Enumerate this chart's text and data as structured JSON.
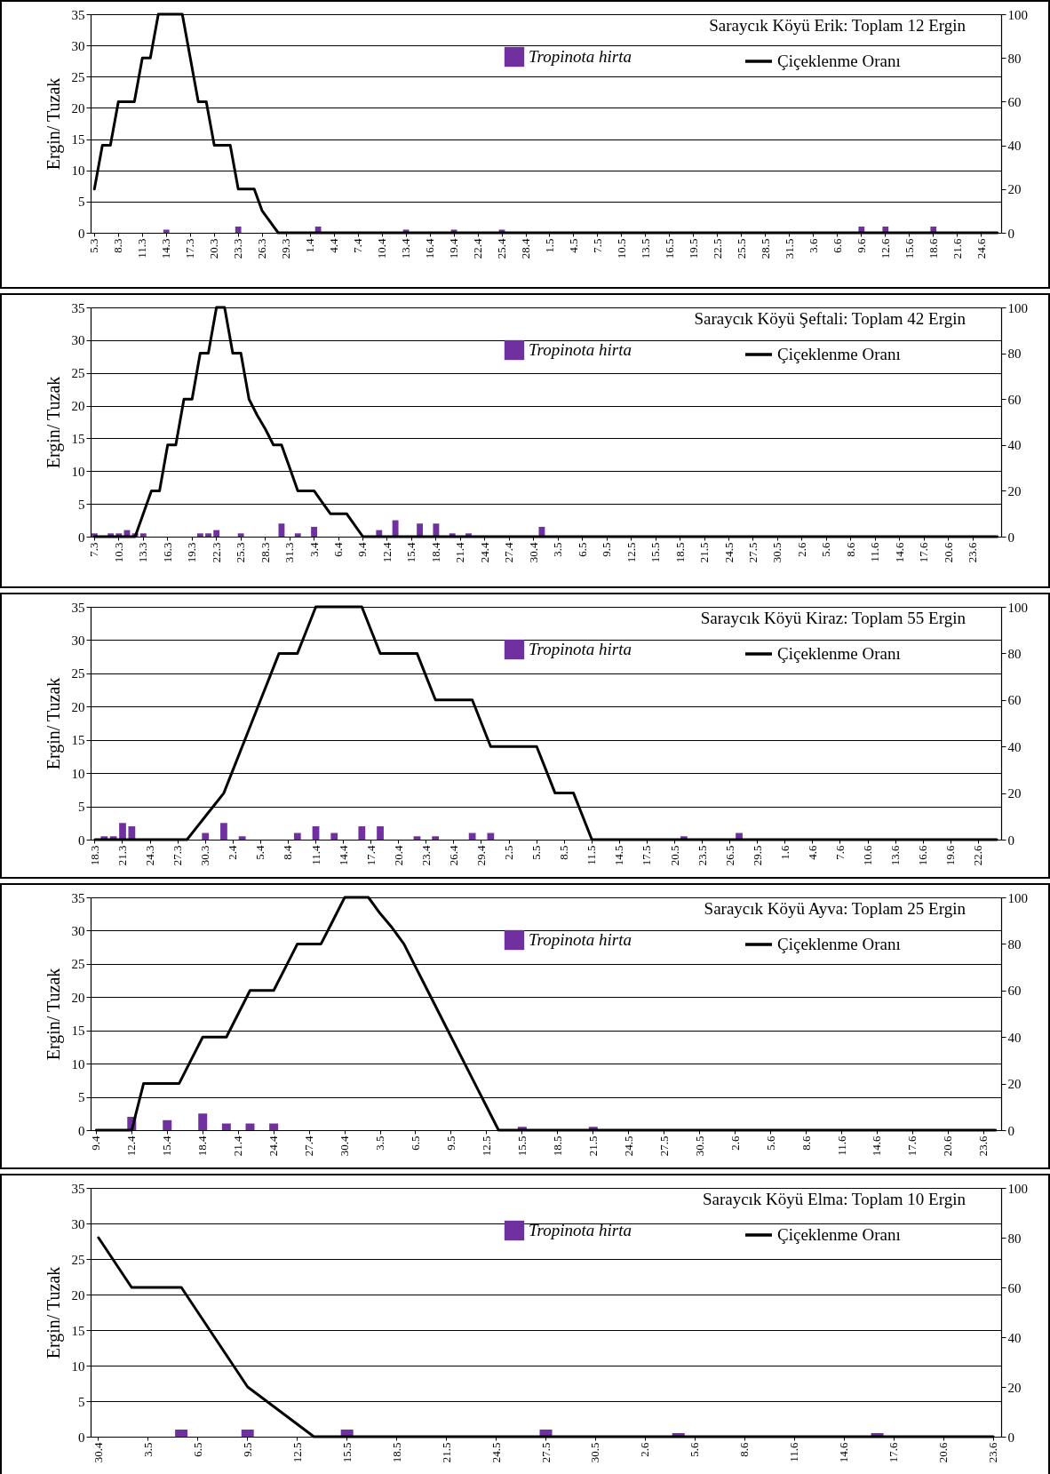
{
  "chart_data": [
    {
      "type": "bar",
      "title": "Saraycık Köyü Erik: Toplam 12 Ergin",
      "ylabel": "Ergin/ Tuzak",
      "grid": "y",
      "legend": "top right",
      "ylim": [
        0,
        35
      ],
      "yticks": [
        0,
        5,
        10,
        15,
        20,
        25,
        30,
        35
      ],
      "y2lim": [
        0,
        100
      ],
      "y2ticks": [
        0,
        20,
        40,
        60,
        80,
        100
      ],
      "categories": [
        "5.3",
        null,
        null,
        "8.3",
        null,
        null,
        "11.3",
        null,
        null,
        "14.3",
        null,
        null,
        "17.3",
        null,
        null,
        "20.3",
        null,
        null,
        "23.3",
        null,
        null,
        "26.3",
        null,
        null,
        "29.3",
        null,
        null,
        "1.4",
        null,
        null,
        "4.4",
        null,
        null,
        "7.4",
        null,
        null,
        "10.4",
        null,
        null,
        "13.4",
        null,
        null,
        "16.4",
        null,
        null,
        "19.4",
        null,
        null,
        "22.4",
        null,
        null,
        "25.4",
        null,
        null,
        "28.4",
        null,
        null,
        "1.5",
        null,
        null,
        "4.5",
        null,
        null,
        "7.5",
        null,
        null,
        "10.5",
        null,
        null,
        "13.5",
        null,
        null,
        "16.5",
        null,
        null,
        "19.5",
        null,
        null,
        "22.5",
        null,
        null,
        "25.5",
        null,
        null,
        "28.5",
        null,
        null,
        "31.5",
        null,
        null,
        "3.6",
        null,
        null,
        "6.6",
        null,
        null,
        "9.6",
        null,
        null,
        "12.6",
        null,
        null,
        "15.6",
        null,
        null,
        "18.6",
        null,
        null,
        "21.6",
        null,
        null,
        "24.6",
        null,
        null
      ],
      "series": [
        {
          "name": "Tropinota hirta",
          "type": "bar",
          "color": "#7030a0",
          "values": [
            0,
            0,
            0,
            0,
            0,
            0,
            0,
            0,
            0,
            0.5,
            0,
            0,
            0,
            0,
            0,
            0,
            0,
            0,
            1,
            0,
            0,
            0,
            0,
            0,
            0,
            0,
            0,
            0,
            1,
            0,
            0,
            0,
            0,
            0,
            0,
            0,
            0,
            0,
            0,
            0.5,
            0,
            0,
            0,
            0,
            0,
            0.5,
            0,
            0,
            0,
            0,
            0,
            0.5,
            0,
            0,
            0,
            0,
            0,
            0,
            0,
            0,
            0,
            0,
            0,
            0,
            0,
            0,
            0,
            0,
            0,
            0,
            0,
            0,
            0,
            0,
            0,
            0,
            0,
            0,
            0,
            0,
            0,
            0,
            0,
            0,
            0,
            0,
            0,
            0,
            0,
            0,
            0,
            0,
            0,
            0,
            0,
            0,
            1,
            0,
            0,
            1,
            0,
            0,
            0,
            0,
            0,
            1,
            0,
            0,
            0,
            0,
            0,
            0,
            0,
            0
          ]
        },
        {
          "name": "Çiçeklenme Oranı",
          "type": "line",
          "axis": "y2",
          "color": "#000000",
          "values": [
            20,
            40,
            40,
            60,
            60,
            60,
            80,
            80,
            100,
            100,
            100,
            100,
            80,
            60,
            60,
            40,
            40,
            40,
            20,
            20,
            20,
            10,
            5,
            0,
            0,
            0,
            0,
            0,
            0,
            0,
            0,
            0,
            0,
            0,
            0,
            0,
            0,
            0,
            0,
            0,
            0,
            0,
            0,
            0,
            0,
            0,
            0,
            0,
            0,
            0,
            0,
            0,
            0,
            0,
            0,
            0,
            0,
            0,
            0,
            0,
            0,
            0,
            0,
            0,
            0,
            0,
            0,
            0,
            0,
            0,
            0,
            0,
            0,
            0,
            0,
            0,
            0,
            0,
            0,
            0,
            0,
            0,
            0,
            0,
            0,
            0,
            0,
            0,
            0,
            0,
            0,
            0,
            0,
            0,
            0,
            0,
            0,
            0,
            0,
            0,
            0,
            0,
            0,
            0,
            0,
            0,
            0,
            0,
            0,
            0,
            0,
            0,
            0,
            0
          ]
        }
      ]
    },
    {
      "type": "bar",
      "title": "Saraycık Köyü Şeftali: Toplam 42 Ergin",
      "ylabel": "Ergin/ Tuzak",
      "grid": "y",
      "legend": "top right",
      "ylim": [
        0,
        35
      ],
      "yticks": [
        0,
        5,
        10,
        15,
        20,
        25,
        30,
        35
      ],
      "y2lim": [
        0,
        100
      ],
      "y2ticks": [
        0,
        20,
        40,
        60,
        80,
        100
      ],
      "categories": [
        "7.3",
        null,
        null,
        "10.3",
        null,
        null,
        "13.3",
        null,
        null,
        "16.3",
        null,
        null,
        "19.3",
        null,
        null,
        "22.3",
        null,
        null,
        "25.3",
        null,
        null,
        "28.3",
        null,
        null,
        "31.3",
        null,
        null,
        "3.4",
        null,
        null,
        "6.4",
        null,
        null,
        "9.4",
        null,
        null,
        "12.4",
        null,
        null,
        "15.4",
        null,
        null,
        "18.4",
        null,
        null,
        "21.4",
        null,
        null,
        "24.4",
        null,
        null,
        "27.4",
        null,
        null,
        "30.4",
        null,
        null,
        "3.5",
        null,
        null,
        "6.5",
        null,
        null,
        "9.5",
        null,
        null,
        "12.5",
        null,
        null,
        "15.5",
        null,
        null,
        "18.5",
        null,
        null,
        "21.5",
        null,
        null,
        "24.5",
        null,
        null,
        "27.5",
        null,
        null,
        "30.5",
        null,
        null,
        "2.6",
        null,
        null,
        "5.6",
        null,
        null,
        "8.6",
        null,
        null,
        "11.6",
        null,
        null,
        "14.6",
        null,
        null,
        "17.6",
        null,
        null,
        "20.6",
        null,
        null,
        "23.6",
        null,
        null,
        null
      ],
      "series": [
        {
          "name": "Tropinota hirta",
          "type": "bar",
          "color": "#7030a0",
          "values": [
            0.5,
            0,
            0.5,
            0.5,
            1,
            0.5,
            0.5,
            0,
            0,
            0,
            0,
            0,
            0,
            0.5,
            0.5,
            1,
            0,
            0,
            0.5,
            0,
            0,
            0,
            0,
            2,
            0,
            0.5,
            0,
            1.5,
            0,
            0,
            0,
            0,
            0,
            0,
            0,
            1,
            0,
            2.5,
            0,
            0,
            2,
            0,
            2,
            0,
            0.5,
            0,
            0.5,
            0,
            0,
            0,
            0,
            0,
            0,
            0,
            0,
            1.5,
            0,
            0,
            0,
            0,
            0,
            0,
            0,
            0,
            0,
            0,
            0,
            0,
            0,
            0,
            0,
            0,
            0,
            0,
            0,
            0,
            0,
            0,
            0,
            0,
            0,
            0,
            0,
            0,
            0,
            0,
            0,
            0,
            0,
            0,
            0,
            0,
            0,
            0,
            0,
            0,
            0,
            0,
            0,
            0,
            0,
            0,
            0,
            0,
            0,
            0,
            0,
            0,
            0,
            0,
            0,
            0
          ]
        },
        {
          "name": "Çiçeklenme Oranı",
          "type": "line",
          "axis": "y2",
          "color": "#000000",
          "values": [
            0,
            0,
            0,
            0,
            0,
            0,
            10,
            20,
            20,
            40,
            40,
            60,
            60,
            80,
            80,
            100,
            100,
            80,
            80,
            60,
            53,
            47,
            40,
            40,
            30,
            20,
            20,
            20,
            15,
            10,
            10,
            10,
            5,
            0,
            0,
            0,
            0,
            0,
            0,
            0,
            0,
            0,
            0,
            0,
            0,
            0,
            0,
            0,
            0,
            0,
            0,
            0,
            0,
            0,
            0,
            0,
            0,
            0,
            0,
            0,
            0,
            0,
            0,
            0,
            0,
            0,
            0,
            0,
            0,
            0,
            0,
            0,
            0,
            0,
            0,
            0,
            0,
            0,
            0,
            0,
            0,
            0,
            0,
            0,
            0,
            0,
            0,
            0,
            0,
            0,
            0,
            0,
            0,
            0,
            0,
            0,
            0,
            0,
            0,
            0,
            0,
            0,
            0,
            0,
            0,
            0,
            0,
            0,
            0,
            0,
            0,
            0
          ]
        }
      ]
    },
    {
      "type": "bar",
      "title": "Saraycık Köyü Kiraz: Toplam 55 Ergin",
      "ylabel": "Ergin/ Tuzak",
      "grid": "y",
      "legend": "top right",
      "ylim": [
        0,
        35
      ],
      "yticks": [
        0,
        5,
        10,
        15,
        20,
        25,
        30,
        35
      ],
      "y2lim": [
        0,
        100
      ],
      "y2ticks": [
        0,
        20,
        40,
        60,
        80,
        100
      ],
      "categories": [
        "18.3",
        null,
        null,
        "21.3",
        null,
        null,
        "24.3",
        null,
        null,
        "27.3",
        null,
        null,
        "30.3",
        null,
        null,
        "2.4",
        null,
        null,
        "5.4",
        null,
        null,
        "8.4",
        null,
        null,
        "11.4",
        null,
        null,
        "14.4",
        null,
        null,
        "17.4",
        null,
        null,
        "20.4",
        null,
        null,
        "23.4",
        null,
        null,
        "26.4",
        null,
        null,
        "29.4",
        null,
        null,
        "2.5",
        null,
        null,
        "5.5",
        null,
        null,
        "8.5",
        null,
        null,
        "11.5",
        null,
        null,
        "14.5",
        null,
        null,
        "17.5",
        null,
        null,
        "20.5",
        null,
        null,
        "23.5",
        null,
        null,
        "26.5",
        null,
        null,
        "29.5",
        null,
        null,
        "1.6",
        null,
        null,
        "4.6",
        null,
        null,
        "7.6",
        null,
        null,
        "10.6",
        null,
        null,
        "13.6",
        null,
        null,
        "16.6",
        null,
        null,
        "19.6",
        null,
        null,
        "22.6",
        null,
        null
      ],
      "series": [
        {
          "name": "Tropinota hirta",
          "type": "bar",
          "color": "#7030a0",
          "values": [
            0,
            0.5,
            0.5,
            2.5,
            2,
            0,
            0,
            0,
            0,
            0,
            0,
            0,
            1,
            0,
            2.5,
            0,
            0.5,
            0,
            0,
            0,
            0,
            0,
            1,
            0,
            2,
            0,
            1,
            0,
            0,
            2,
            0,
            2,
            0,
            0,
            0,
            0.5,
            0,
            0.5,
            0,
            0,
            0,
            1,
            0,
            1,
            0,
            0,
            0,
            0,
            0,
            0,
            0,
            0,
            0,
            0,
            0,
            0,
            0,
            0,
            0,
            0,
            0,
            0,
            0,
            0,
            0.5,
            0,
            0,
            0,
            0,
            0,
            1,
            0,
            0,
            0,
            0,
            0,
            0,
            0,
            0,
            0,
            0,
            0,
            0,
            0,
            0,
            0,
            0,
            0,
            0,
            0,
            0,
            0,
            0,
            0,
            0,
            0,
            0,
            0,
            0
          ]
        },
        {
          "name": "Çiçeklenme Oranı",
          "type": "line",
          "axis": "y2",
          "color": "#000000",
          "values": [
            0,
            0,
            0,
            0,
            0,
            0,
            0,
            0,
            0,
            0,
            0,
            5,
            10,
            15,
            20,
            30,
            40,
            50,
            60,
            70,
            80,
            80,
            80,
            90,
            100,
            100,
            100,
            100,
            100,
            100,
            90,
            80,
            80,
            80,
            80,
            80,
            70,
            60,
            60,
            60,
            60,
            60,
            50,
            40,
            40,
            40,
            40,
            40,
            40,
            30,
            20,
            20,
            20,
            10,
            0,
            0,
            0,
            0,
            0,
            0,
            0,
            0,
            0,
            0,
            0,
            0,
            0,
            0,
            0,
            0,
            0,
            0,
            0,
            0,
            0,
            0,
            0,
            0,
            0,
            0,
            0,
            0,
            0,
            0,
            0,
            0,
            0,
            0,
            0,
            0,
            0,
            0,
            0,
            0,
            0,
            0,
            0,
            0,
            0
          ]
        }
      ]
    },
    {
      "type": "bar",
      "title": "Saraycık Köyü Ayva: Toplam 25 Ergin",
      "ylabel": "Ergin/ Tuzak",
      "grid": "y",
      "legend": "top right",
      "ylim": [
        0,
        35
      ],
      "yticks": [
        0,
        5,
        10,
        15,
        20,
        25,
        30,
        35
      ],
      "y2lim": [
        0,
        100
      ],
      "y2ticks": [
        0,
        20,
        40,
        60,
        80,
        100
      ],
      "categories": [
        "9.4",
        null,
        null,
        "12.4",
        null,
        null,
        "15.4",
        null,
        null,
        "18.4",
        null,
        null,
        "21.4",
        null,
        null,
        "24.4",
        null,
        null,
        "27.4",
        null,
        null,
        "30.4",
        null,
        null,
        "3.5",
        null,
        null,
        "6.5",
        null,
        null,
        "9.5",
        null,
        null,
        "12.5",
        null,
        null,
        "15.5",
        null,
        null,
        "18.5",
        null,
        null,
        "21.5",
        null,
        null,
        "24.5",
        null,
        null,
        "27.5",
        null,
        null,
        "30.5",
        null,
        null,
        "2.6",
        null,
        null,
        "5.6",
        null,
        null,
        "8.6",
        null,
        null,
        "11.6",
        null,
        null,
        "14.6",
        null,
        null,
        "17.6",
        null,
        null,
        "20.6",
        null,
        null,
        "23.6",
        null
      ],
      "series": [
        {
          "name": "Tropinota hirta",
          "type": "bar",
          "color": "#7030a0",
          "values": [
            0,
            0,
            0,
            2,
            0,
            0,
            1.5,
            0,
            0,
            2.5,
            0,
            1,
            0,
            1,
            0,
            1,
            0,
            0,
            0,
            0,
            0,
            0,
            0,
            0,
            0,
            0,
            0,
            0,
            0,
            0,
            0,
            0,
            0,
            0,
            0,
            0,
            0.5,
            0,
            0,
            0,
            0,
            0,
            0.5,
            0,
            0,
            0,
            0,
            0,
            0,
            0,
            0,
            0,
            0,
            0,
            0,
            0,
            0,
            0,
            0,
            0,
            0,
            0,
            0,
            0,
            0,
            0,
            0,
            0,
            0,
            0,
            0,
            0,
            0,
            0,
            0,
            0,
            0
          ]
        },
        {
          "name": "Çiçeklenme Oranı",
          "type": "line",
          "axis": "y2",
          "color": "#000000",
          "values": [
            0,
            0,
            0,
            0,
            20,
            20,
            20,
            20,
            30,
            40,
            40,
            40,
            50,
            60,
            60,
            60,
            70,
            80,
            80,
            80,
            90,
            100,
            100,
            100,
            93,
            87,
            80,
            70,
            60,
            50,
            40,
            30,
            20,
            10,
            0,
            0,
            0,
            0,
            0,
            0,
            0,
            0,
            0,
            0,
            0,
            0,
            0,
            0,
            0,
            0,
            0,
            0,
            0,
            0,
            0,
            0,
            0,
            0,
            0,
            0,
            0,
            0,
            0,
            0,
            0,
            0,
            0,
            0,
            0,
            0,
            0,
            0,
            0,
            0,
            0,
            0,
            0
          ]
        }
      ]
    },
    {
      "type": "bar",
      "title": "Saraycık Köyü Elma: Toplam 10 Ergin",
      "ylabel": "Ergin/ Tuzak",
      "grid": "y",
      "legend": "top right",
      "ylim": [
        0,
        35
      ],
      "yticks": [
        0,
        5,
        10,
        15,
        20,
        25,
        30,
        35
      ],
      "y2lim": [
        0,
        100
      ],
      "y2ticks": [
        0,
        20,
        40,
        60,
        80,
        100
      ],
      "categories": [
        "30.4",
        null,
        null,
        "3.5",
        null,
        null,
        "6.5",
        null,
        null,
        "9.5",
        null,
        null,
        "12.5",
        null,
        null,
        "15.5",
        null,
        null,
        "18.5",
        null,
        null,
        "21.5",
        null,
        null,
        "24.5",
        null,
        null,
        "27.5",
        null,
        null,
        "30.5",
        null,
        null,
        "2.6",
        null,
        null,
        "5.6",
        null,
        null,
        "8.6",
        null,
        null,
        "11.6",
        null,
        null,
        "14.6",
        null,
        null,
        "17.6",
        null,
        null,
        "20.6",
        null,
        null,
        "23.6"
      ],
      "series": [
        {
          "name": "Tropinota hirta",
          "type": "bar",
          "color": "#7030a0",
          "values": [
            0,
            0,
            0,
            0,
            0,
            1,
            0,
            0,
            0,
            1,
            0,
            0,
            0,
            0,
            0,
            1,
            0,
            0,
            0,
            0,
            0,
            0,
            0,
            0,
            0,
            0,
            0,
            1,
            0,
            0,
            0,
            0,
            0,
            0,
            0,
            0.5,
            0,
            0,
            0,
            0,
            0,
            0,
            0,
            0,
            0,
            0,
            0,
            0.5,
            0,
            0,
            0,
            0,
            0,
            0,
            0
          ]
        },
        {
          "name": "Çiçeklenme Oranı",
          "type": "line",
          "axis": "y2",
          "color": "#000000",
          "values": [
            80,
            70,
            60,
            60,
            60,
            60,
            50,
            40,
            30,
            20,
            15,
            10,
            5,
            0,
            0,
            0,
            0,
            0,
            0,
            0,
            0,
            0,
            0,
            0,
            0,
            0,
            0,
            0,
            0,
            0,
            0,
            0,
            0,
            0,
            0,
            0,
            0,
            0,
            0,
            0,
            0,
            0,
            0,
            0,
            0,
            0,
            0,
            0,
            0,
            0,
            0,
            0,
            0,
            0,
            0
          ]
        }
      ]
    }
  ]
}
